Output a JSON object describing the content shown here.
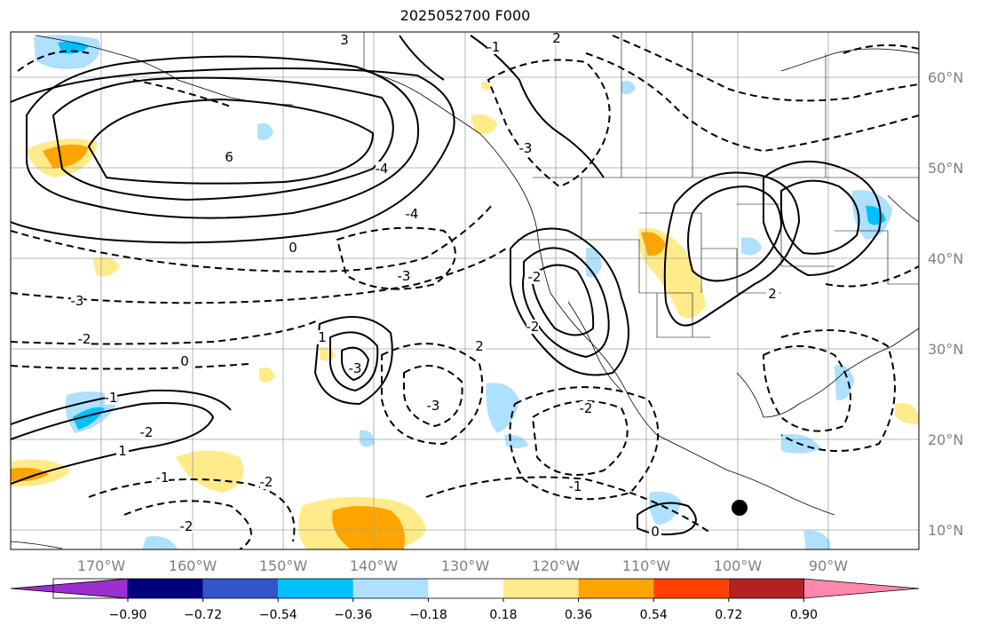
{
  "title": "2025052700 F000",
  "lon_labels": [
    "170°W",
    "160°W",
    "150°W",
    "140°W",
    "130°W",
    "120°W",
    "110°W",
    "100°W",
    "90°W"
  ],
  "lat_labels": [
    "60°N",
    "50°N",
    "40°N",
    "30°N",
    "20°N",
    "10°N"
  ],
  "colorbar": {
    "colors": [
      "#9b30d0",
      "#000080",
      "#3355cc",
      "#00bfff",
      "#aee0ff",
      "#ffffff",
      "#ffeb8a",
      "#ffa500",
      "#ff4000",
      "#b22222",
      "#ff88aa"
    ],
    "tick_labels": [
      "−0.90",
      "−0.72",
      "−0.54",
      "−0.36",
      "−0.18",
      "0.18",
      "0.36",
      "0.54",
      "0.72",
      "0.90"
    ]
  },
  "contour_labels": [
    "6",
    "3",
    "0",
    "-3",
    "-4",
    "-2",
    "-1",
    "2",
    "1",
    "0",
    "-2",
    "-3",
    "-3",
    "-1",
    "-2",
    "-3",
    "2",
    "-2",
    "1",
    "-1",
    "-2",
    "0",
    "-4",
    "-3",
    "2",
    "-2",
    "-1",
    "-2"
  ],
  "marker": "●"
}
